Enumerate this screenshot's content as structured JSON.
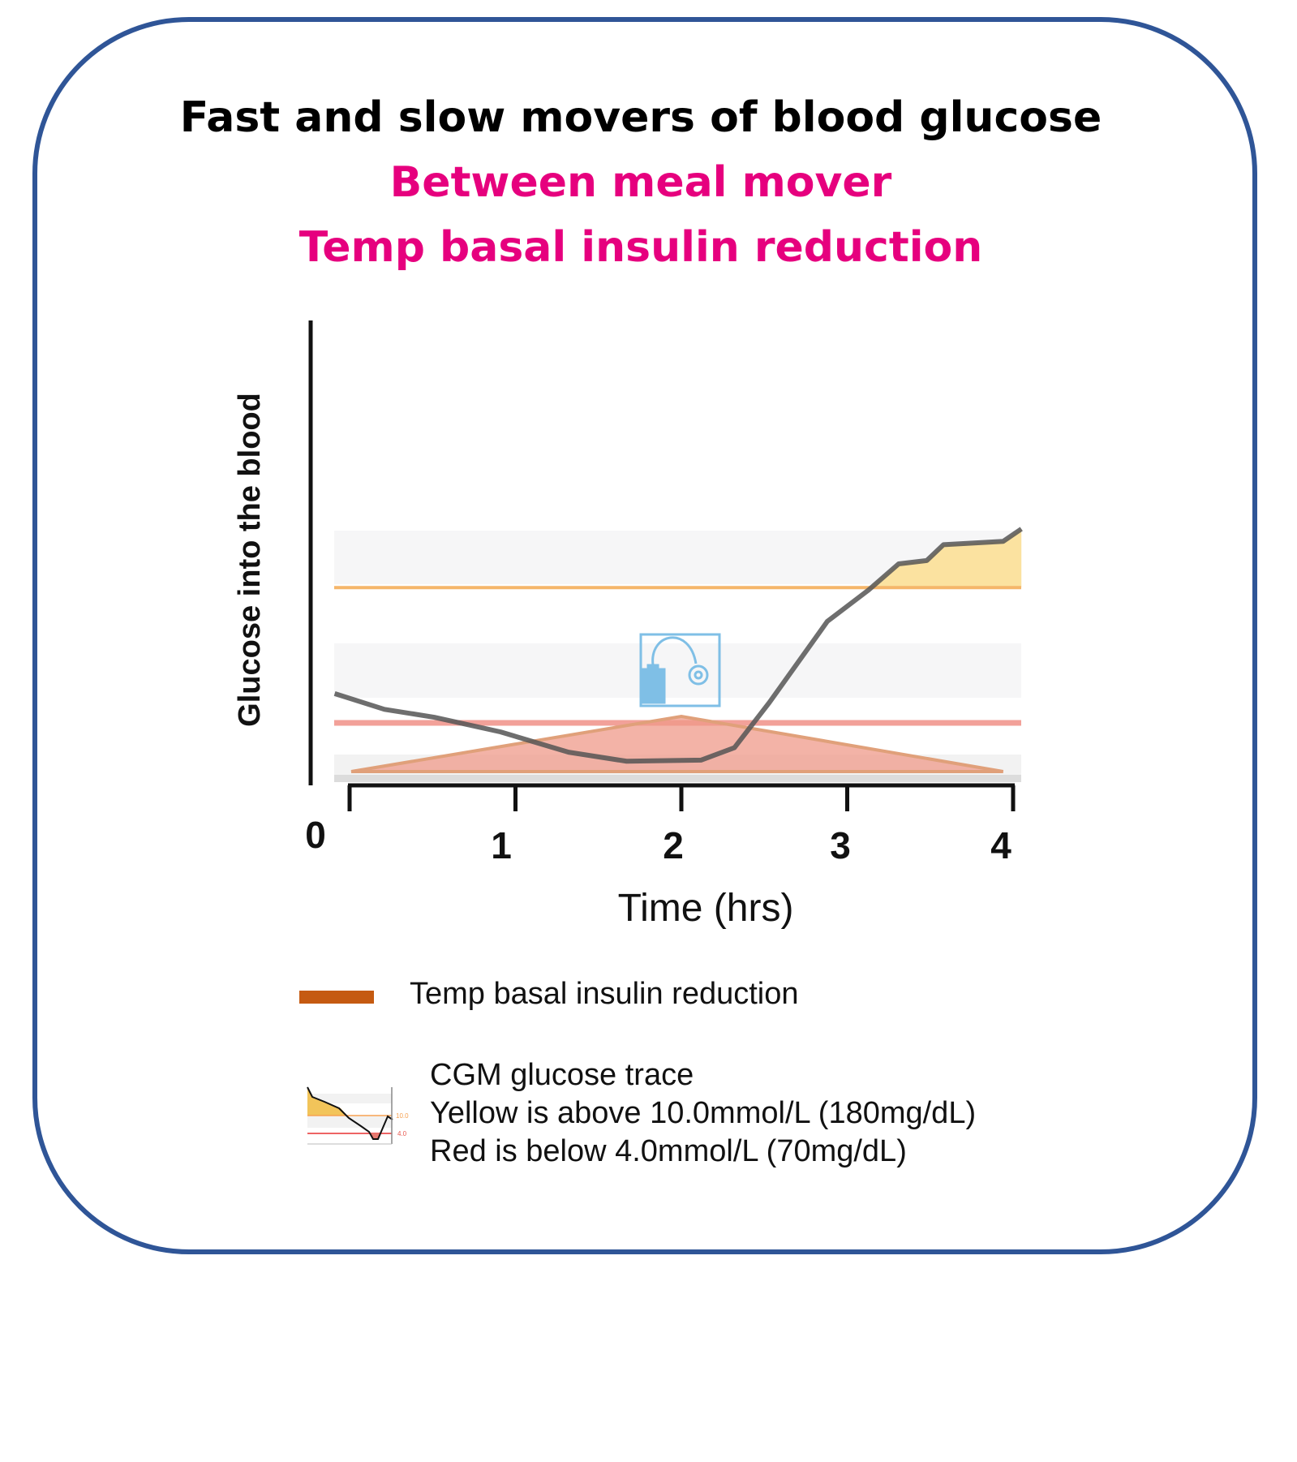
{
  "title": "Fast and slow movers of blood  glucose",
  "subtitle_1": "Between meal mover",
  "subtitle_2": "Temp basal insulin reduction",
  "colors": {
    "border": "#2f5597",
    "subtitle": "#e6007e",
    "cgm_trace": "#555555",
    "high_threshold": "#f5b66a",
    "low_threshold": "#f08a80",
    "above_fill": "#fbe2a0",
    "temp_basal": "#c55a11",
    "temp_basal_fill": "#ef9a8a",
    "pump_icon": "#7fbfe6"
  },
  "icons": {
    "pump": "insulin-pump-icon",
    "cgm_legend": "cgm-trace-thumbnail-icon"
  },
  "chart_data": {
    "type": "line",
    "xlabel": "Time (hrs)",
    "ylabel": "Glucose into the blood",
    "x_ticks": [
      "0",
      "1",
      "2",
      "3",
      "4"
    ],
    "xlim": [
      0,
      4
    ],
    "grid": false,
    "thresholds": [
      {
        "value": 10.0,
        "label": "10.0",
        "color": "#f5b66a"
      },
      {
        "value": 4.0,
        "label": "4.0",
        "color": "#f08a80"
      }
    ],
    "series": [
      {
        "name": "CGM glucose trace",
        "x": [
          -0.09,
          0.21,
          0.51,
          0.91,
          1.32,
          1.67,
          2.12,
          2.32,
          2.53,
          2.88,
          3.13,
          3.31,
          3.48,
          3.58,
          3.94,
          4.05
        ],
        "y": [
          5.3,
          4.6,
          4.25,
          3.6,
          2.7,
          2.3,
          2.35,
          2.9,
          4.9,
          8.5,
          9.9,
          11.05,
          11.2,
          11.9,
          12.05,
          12.6
        ]
      },
      {
        "name": "Temp basal insulin reduction",
        "x": [
          0.01,
          2.0,
          3.94
        ],
        "y": [
          0,
          1,
          0
        ]
      }
    ],
    "legend": [
      {
        "label": "Temp basal insulin reduction",
        "color": "#c55a11"
      },
      {
        "lines": [
          "CGM glucose trace",
          "Yellow is above 10.0mmol/L (180mg/dL)",
          "Red is below 4.0mmol/L (70mg/dL)"
        ]
      }
    ],
    "legend_placement": "bottom"
  }
}
